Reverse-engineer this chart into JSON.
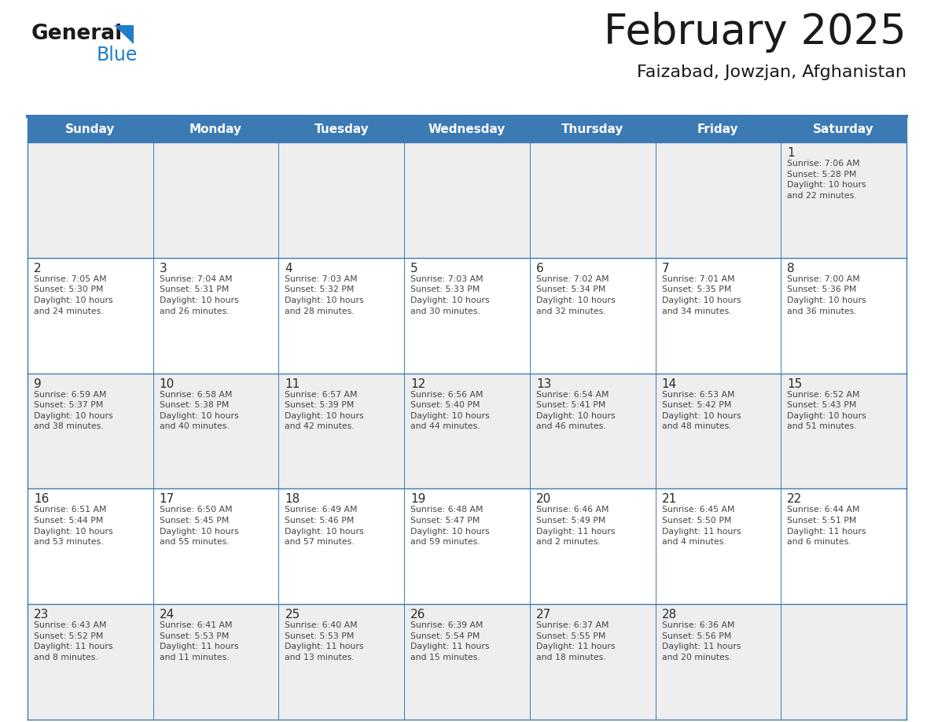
{
  "title": "February 2025",
  "subtitle": "Faizabad, Jowzjan, Afghanistan",
  "header_bg": "#3C7AB5",
  "header_text_color": "#FFFFFF",
  "weekdays": [
    "Sunday",
    "Monday",
    "Tuesday",
    "Wednesday",
    "Thursday",
    "Friday",
    "Saturday"
  ],
  "row0_bg": "#EEEEEE",
  "odd_row_bg": "#FFFFFF",
  "even_row_bg": "#EEEEEE",
  "cell_border_color": "#3C7AB5",
  "title_color": "#1a1a1a",
  "subtitle_color": "#1a1a1a",
  "day_number_color": "#2a2a2a",
  "info_text_color": "#444444",
  "logo_general_color": "#1a1a1a",
  "logo_blue_color": "#1E7EC8",
  "calendar_data": [
    [
      {
        "day": null,
        "info": ""
      },
      {
        "day": null,
        "info": ""
      },
      {
        "day": null,
        "info": ""
      },
      {
        "day": null,
        "info": ""
      },
      {
        "day": null,
        "info": ""
      },
      {
        "day": null,
        "info": ""
      },
      {
        "day": 1,
        "info": "Sunrise: 7:06 AM\nSunset: 5:28 PM\nDaylight: 10 hours\nand 22 minutes."
      }
    ],
    [
      {
        "day": 2,
        "info": "Sunrise: 7:05 AM\nSunset: 5:30 PM\nDaylight: 10 hours\nand 24 minutes."
      },
      {
        "day": 3,
        "info": "Sunrise: 7:04 AM\nSunset: 5:31 PM\nDaylight: 10 hours\nand 26 minutes."
      },
      {
        "day": 4,
        "info": "Sunrise: 7:03 AM\nSunset: 5:32 PM\nDaylight: 10 hours\nand 28 minutes."
      },
      {
        "day": 5,
        "info": "Sunrise: 7:03 AM\nSunset: 5:33 PM\nDaylight: 10 hours\nand 30 minutes."
      },
      {
        "day": 6,
        "info": "Sunrise: 7:02 AM\nSunset: 5:34 PM\nDaylight: 10 hours\nand 32 minutes."
      },
      {
        "day": 7,
        "info": "Sunrise: 7:01 AM\nSunset: 5:35 PM\nDaylight: 10 hours\nand 34 minutes."
      },
      {
        "day": 8,
        "info": "Sunrise: 7:00 AM\nSunset: 5:36 PM\nDaylight: 10 hours\nand 36 minutes."
      }
    ],
    [
      {
        "day": 9,
        "info": "Sunrise: 6:59 AM\nSunset: 5:37 PM\nDaylight: 10 hours\nand 38 minutes."
      },
      {
        "day": 10,
        "info": "Sunrise: 6:58 AM\nSunset: 5:38 PM\nDaylight: 10 hours\nand 40 minutes."
      },
      {
        "day": 11,
        "info": "Sunrise: 6:57 AM\nSunset: 5:39 PM\nDaylight: 10 hours\nand 42 minutes."
      },
      {
        "day": 12,
        "info": "Sunrise: 6:56 AM\nSunset: 5:40 PM\nDaylight: 10 hours\nand 44 minutes."
      },
      {
        "day": 13,
        "info": "Sunrise: 6:54 AM\nSunset: 5:41 PM\nDaylight: 10 hours\nand 46 minutes."
      },
      {
        "day": 14,
        "info": "Sunrise: 6:53 AM\nSunset: 5:42 PM\nDaylight: 10 hours\nand 48 minutes."
      },
      {
        "day": 15,
        "info": "Sunrise: 6:52 AM\nSunset: 5:43 PM\nDaylight: 10 hours\nand 51 minutes."
      }
    ],
    [
      {
        "day": 16,
        "info": "Sunrise: 6:51 AM\nSunset: 5:44 PM\nDaylight: 10 hours\nand 53 minutes."
      },
      {
        "day": 17,
        "info": "Sunrise: 6:50 AM\nSunset: 5:45 PM\nDaylight: 10 hours\nand 55 minutes."
      },
      {
        "day": 18,
        "info": "Sunrise: 6:49 AM\nSunset: 5:46 PM\nDaylight: 10 hours\nand 57 minutes."
      },
      {
        "day": 19,
        "info": "Sunrise: 6:48 AM\nSunset: 5:47 PM\nDaylight: 10 hours\nand 59 minutes."
      },
      {
        "day": 20,
        "info": "Sunrise: 6:46 AM\nSunset: 5:49 PM\nDaylight: 11 hours\nand 2 minutes."
      },
      {
        "day": 21,
        "info": "Sunrise: 6:45 AM\nSunset: 5:50 PM\nDaylight: 11 hours\nand 4 minutes."
      },
      {
        "day": 22,
        "info": "Sunrise: 6:44 AM\nSunset: 5:51 PM\nDaylight: 11 hours\nand 6 minutes."
      }
    ],
    [
      {
        "day": 23,
        "info": "Sunrise: 6:43 AM\nSunset: 5:52 PM\nDaylight: 11 hours\nand 8 minutes."
      },
      {
        "day": 24,
        "info": "Sunrise: 6:41 AM\nSunset: 5:53 PM\nDaylight: 11 hours\nand 11 minutes."
      },
      {
        "day": 25,
        "info": "Sunrise: 6:40 AM\nSunset: 5:53 PM\nDaylight: 11 hours\nand 13 minutes."
      },
      {
        "day": 26,
        "info": "Sunrise: 6:39 AM\nSunset: 5:54 PM\nDaylight: 11 hours\nand 15 minutes."
      },
      {
        "day": 27,
        "info": "Sunrise: 6:37 AM\nSunset: 5:55 PM\nDaylight: 11 hours\nand 18 minutes."
      },
      {
        "day": 28,
        "info": "Sunrise: 6:36 AM\nSunset: 5:56 PM\nDaylight: 11 hours\nand 20 minutes."
      },
      {
        "day": null,
        "info": ""
      }
    ]
  ]
}
